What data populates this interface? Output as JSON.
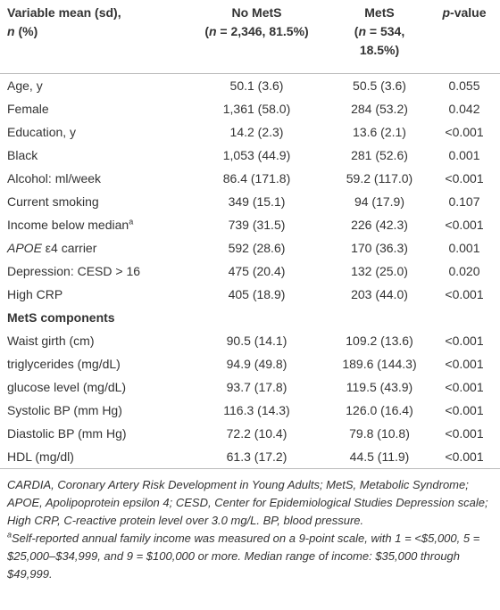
{
  "header": [
    [
      "Variable mean (sd),",
      "n",
      " (%)"
    ],
    [
      "No MetS",
      "(",
      "n",
      " = 2,346, 81.5%)"
    ],
    [
      "MetS",
      "(",
      "n",
      " = 534,",
      "18.5%)"
    ],
    [
      "p",
      "-value"
    ]
  ],
  "rows": [
    {
      "label": "Age, y",
      "cells": [
        "50.1 (3.6)",
        "50.5 (3.6)",
        "0.055"
      ]
    },
    {
      "label": "Female",
      "cells": [
        "1,361 (58.0)",
        "284 (53.2)",
        "0.042"
      ]
    },
    {
      "label": "Education, y",
      "cells": [
        "14.2 (2.3)",
        "13.6 (2.1)",
        "<0.001"
      ]
    },
    {
      "label": "Black",
      "cells": [
        "1,053 (44.9)",
        "281 (52.6)",
        "0.001"
      ]
    },
    {
      "label": "Alcohol: ml/week",
      "cells": [
        "86.4 (171.8)",
        "59.2 (117.0)",
        "<0.001"
      ]
    },
    {
      "label": "Current smoking",
      "cells": [
        "349 (15.1)",
        "94 (17.9)",
        "0.107"
      ]
    },
    {
      "label": "Income below median",
      "sup": "a",
      "cells": [
        "739 (31.5)",
        "226 (42.3)",
        "<0.001"
      ]
    },
    {
      "italic": "APOE",
      "label": " ε4 carrier",
      "cells": [
        "592 (28.6)",
        "170 (36.3)",
        "0.001"
      ]
    },
    {
      "label": "Depression: CESD > 16",
      "cells": [
        "475 (20.4)",
        "132 (25.0)",
        "0.020"
      ]
    },
    {
      "label": "High CRP",
      "cells": [
        "405 (18.9)",
        "203 (44.0)",
        "<0.001"
      ]
    },
    {
      "section": "MetS components"
    },
    {
      "label": "Waist girth (cm)",
      "cells": [
        "90.5 (14.1)",
        "109.2 (13.6)",
        "<0.001"
      ]
    },
    {
      "label": "triglycerides (mg/dL)",
      "cells": [
        "94.9 (49.8)",
        "189.6 (144.3)",
        "<0.001"
      ]
    },
    {
      "label": "glucose level (mg/dL)",
      "cells": [
        "93.7 (17.8)",
        "119.5 (43.9)",
        "<0.001"
      ]
    },
    {
      "label": "Systolic BP (mm Hg)",
      "cells": [
        "116.3 (14.3)",
        "126.0 (16.4)",
        "<0.001"
      ]
    },
    {
      "label": "Diastolic BP (mm Hg)",
      "cells": [
        "72.2 (10.4)",
        "79.8 (10.8)",
        "<0.001"
      ]
    },
    {
      "label": "HDL (mg/dl)",
      "cells": [
        "61.3 (17.2)",
        "44.5 (11.9)",
        "<0.001"
      ]
    }
  ],
  "footnotes": [
    {
      "text": "CARDIA, Coronary Artery Risk Development in Young Adults; MetS, Metabolic Syndrome; APOE, Apolipoprotein epsilon 4; CESD, Center for Epidemiological Studies Depression scale; High CRP, C-reactive protein level over 3.0 mg/L. BP, blood pressure."
    },
    {
      "sup": "a",
      "text": "Self-reported annual family income was measured on a 9-point scale, with 1 = <$5,000, 5 = $25,000–$34,999, and 9 = $100,000 or more. Median range of income: $35,000 through $49,999."
    }
  ]
}
